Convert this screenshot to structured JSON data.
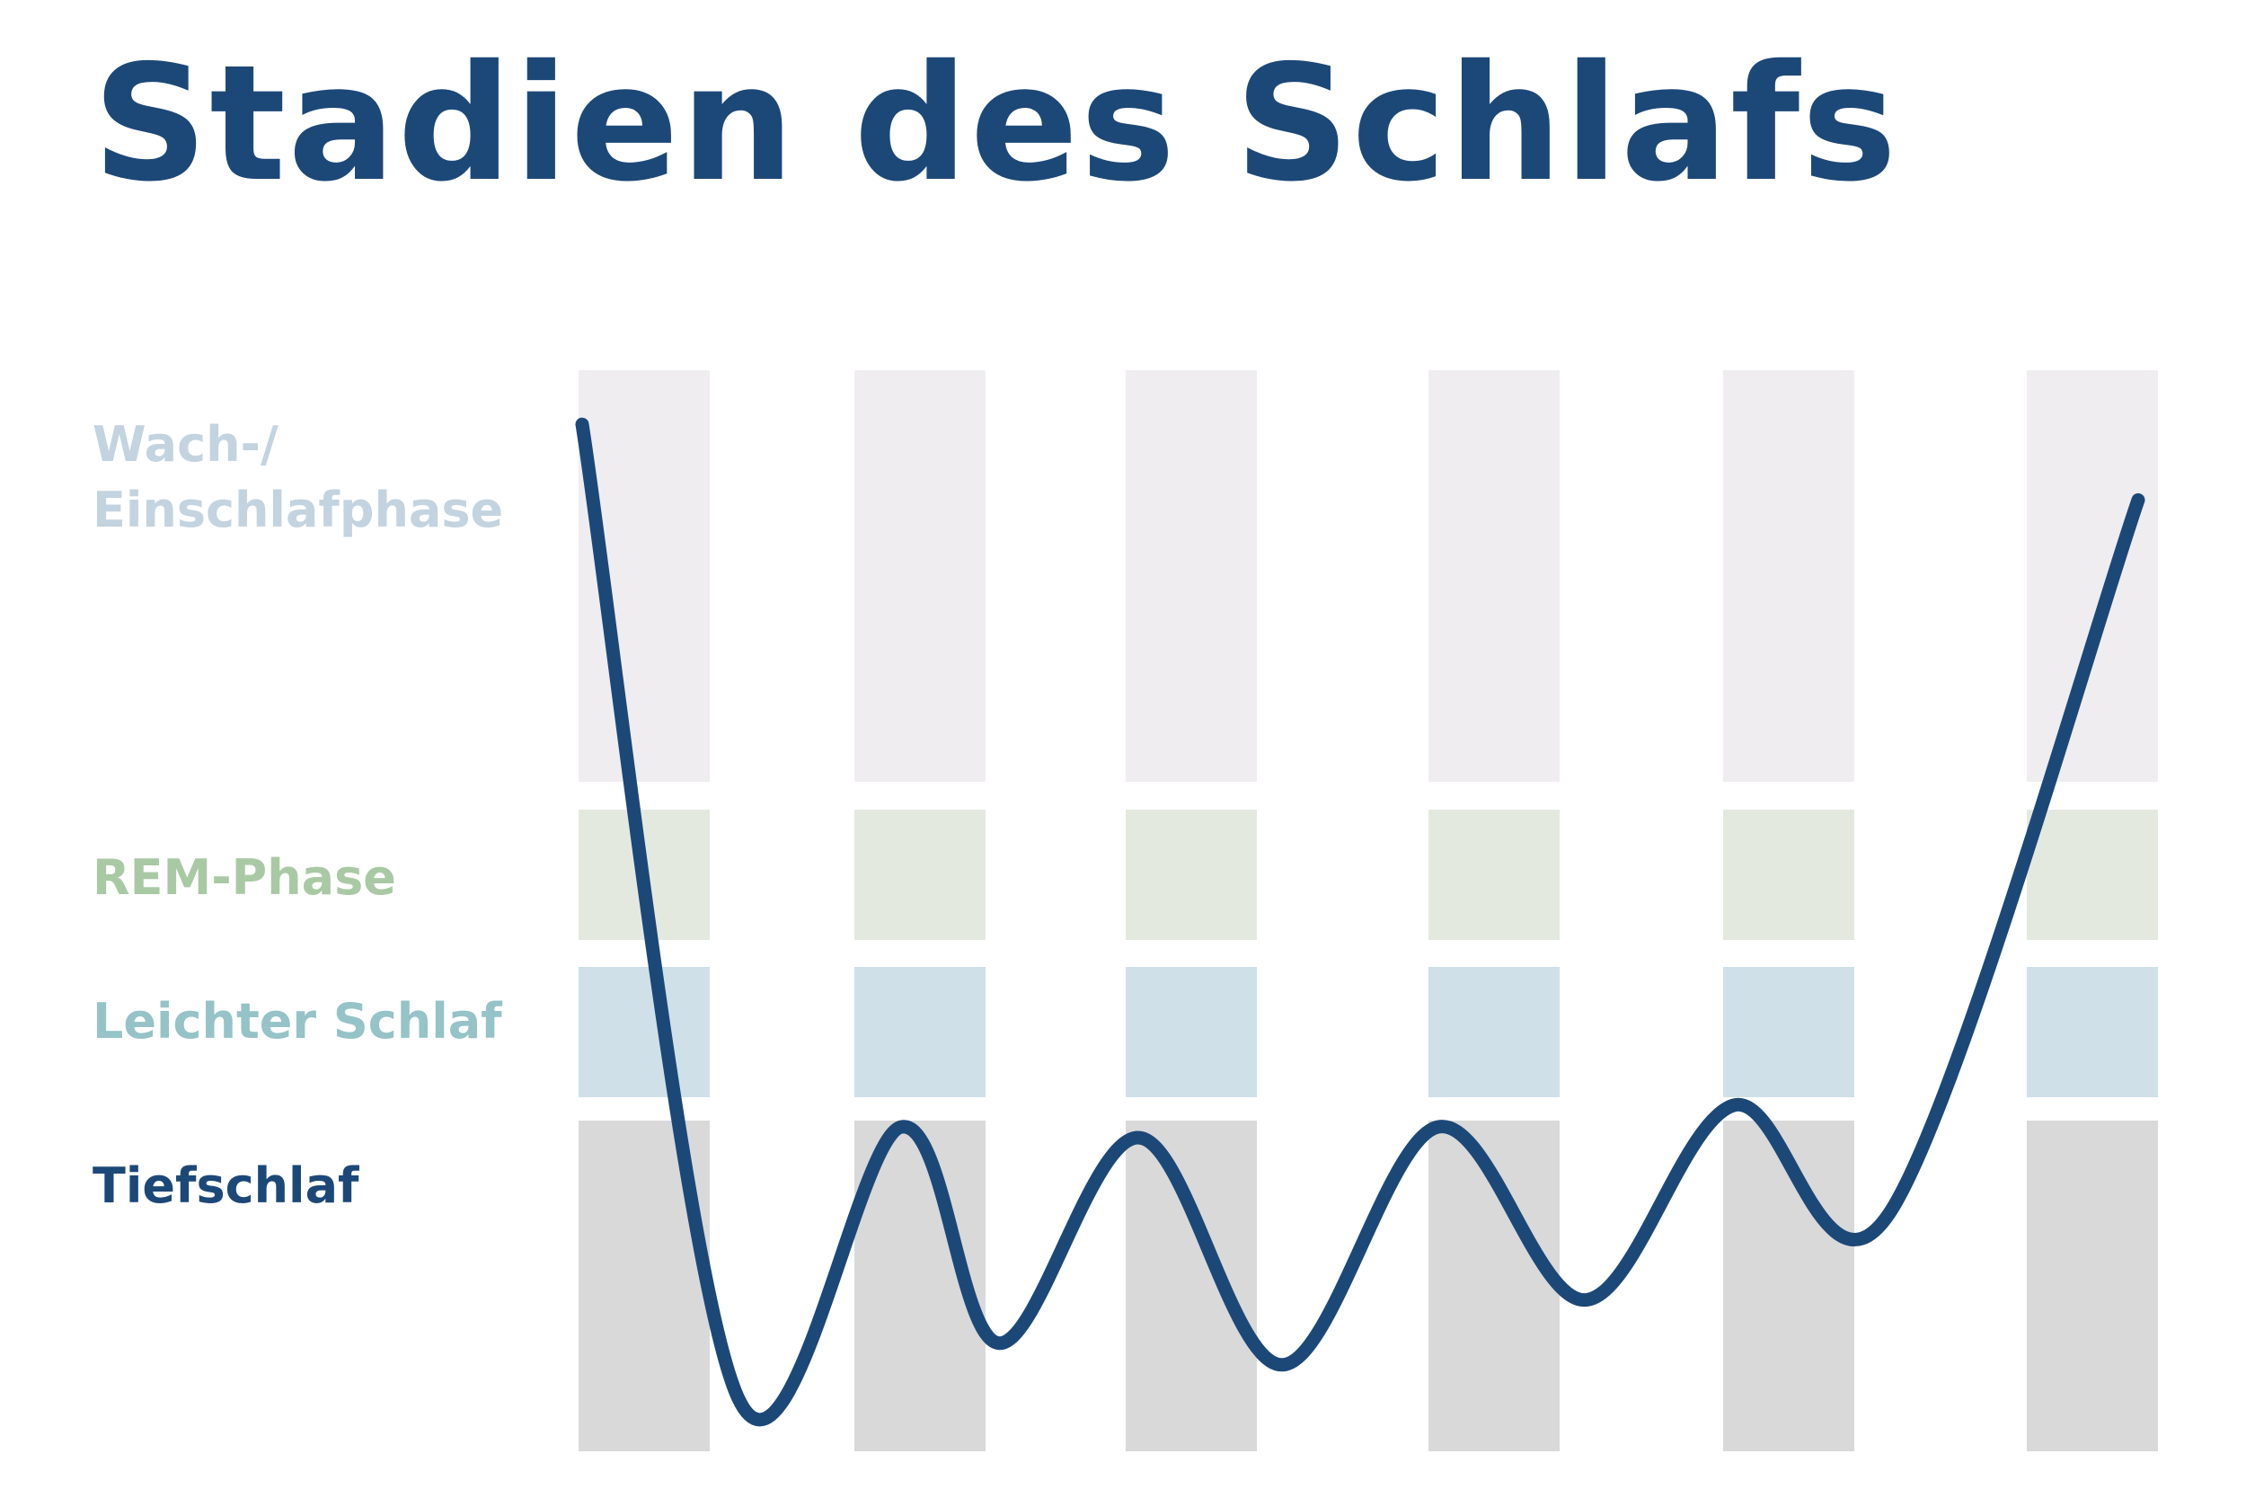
{
  "title": "Stadien des Schlafs",
  "stages": [
    {
      "id": "wake",
      "label_line1": "Wach-/",
      "label_line2": "Einschlafphase",
      "color": "#c3d3df",
      "band_color": "#efedf0"
    },
    {
      "id": "rem",
      "label": "REM-Phase",
      "color": "#a9c9a4",
      "band_color": "#e4e9e0"
    },
    {
      "id": "light",
      "label": "Leichter Schlaf",
      "color": "#95c3c7",
      "band_color": "#cfe0e9"
    },
    {
      "id": "deep",
      "label": "Tiefschlaf",
      "color": "#1c4878",
      "band_color": "#d9d9d9"
    }
  ],
  "colors": {
    "title": "#1c4878",
    "curve": "#1c4878"
  },
  "chart_data": {
    "type": "line",
    "columns": 6,
    "y_categories": [
      "Wach-/ Einschlafphase",
      "REM-Phase",
      "Leichter Schlaf",
      "Tiefschlaf"
    ],
    "ylim": [
      0,
      1
    ],
    "series": [
      {
        "points": [
          [
            0.0,
            0.95
          ],
          [
            0.1,
            0.05
          ],
          [
            0.205,
            0.3
          ],
          [
            0.268,
            0.1
          ],
          [
            0.358,
            0.29
          ],
          [
            0.45,
            0.08
          ],
          [
            0.55,
            0.3
          ],
          [
            0.645,
            0.14
          ],
          [
            0.74,
            0.32
          ],
          [
            0.84,
            0.22
          ],
          [
            1.0,
            0.88
          ]
        ]
      }
    ]
  }
}
